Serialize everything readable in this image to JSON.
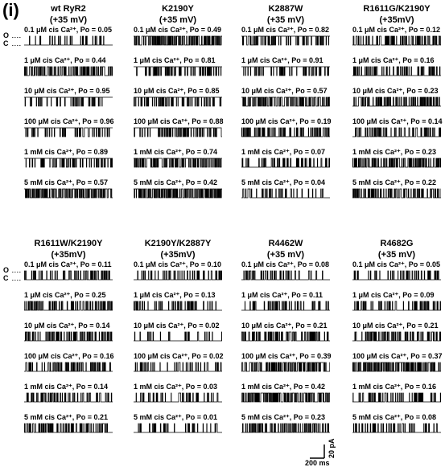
{
  "panel_label": "(i)",
  "state_labels": {
    "open": "O",
    "closed": "C"
  },
  "groups": [
    {
      "title_line1": "wt RyR2",
      "title_line2": "(+35 mV)",
      "conditions": [
        {
          "label": "0.1 μM cis Ca²⁺, Po = 0.05",
          "po": 0.05
        },
        {
          "label": "1 μM cis Ca²⁺, Po = 0.44",
          "po": 0.44
        },
        {
          "label": "10 μM cis Ca²⁺, Po = 0.95",
          "po": 0.95
        },
        {
          "label": "100 μM cis Ca²⁺, Po = 0.96",
          "po": 0.96
        },
        {
          "label": "1 mM cis Ca²⁺, Po = 0.89",
          "po": 0.89
        },
        {
          "label": "5 mM cis Ca²⁺, Po = 0.57",
          "po": 0.57
        }
      ]
    },
    {
      "title_line1": "K2190Y",
      "title_line2": "(+35 mV)",
      "conditions": [
        {
          "label": "0.1 μM cis Ca²⁺, Po = 0.49",
          "po": 0.49
        },
        {
          "label": "1 μM cis Ca²⁺, Po = 0.81",
          "po": 0.81
        },
        {
          "label": "10 μM cis Ca²⁺, Po = 0.85",
          "po": 0.85
        },
        {
          "label": "100 μM cis Ca²⁺, Po = 0.88",
          "po": 0.88
        },
        {
          "label": "1 mM cis Ca²⁺, Po = 0.74",
          "po": 0.74
        },
        {
          "label": "5 mM cis Ca²⁺, Po = 0.42",
          "po": 0.42
        }
      ]
    },
    {
      "title_line1": "K2887W",
      "title_line2": "(+35 mV)",
      "conditions": [
        {
          "label": "0.1 μM cis Ca²⁺, Po = 0.82",
          "po": 0.82
        },
        {
          "label": "1 μM cis Ca²⁺, Po = 0.91",
          "po": 0.91
        },
        {
          "label": "10 μM cis Ca²⁺, Po = 0.57",
          "po": 0.57
        },
        {
          "label": "100 μM cis Ca²⁺, Po = 0.19",
          "po": 0.19
        },
        {
          "label": "1 mM cis Ca²⁺, Po = 0.07",
          "po": 0.07
        },
        {
          "label": "5 mM cis Ca²⁺, Po = 0.04",
          "po": 0.04
        }
      ]
    },
    {
      "title_line1": "R1611G/K2190Y",
      "title_line2": "(+35mV)",
      "conditions": [
        {
          "label": "0.1 μM cis Ca²⁺, Po = 0.12",
          "po": 0.12
        },
        {
          "label": "1 μM cis Ca²⁺, Po = 0.16",
          "po": 0.16
        },
        {
          "label": "10 μM cis Ca²⁺, Po = 0.23",
          "po": 0.23
        },
        {
          "label": "100 μM cis Ca²⁺, Po = 0.14",
          "po": 0.14
        },
        {
          "label": "1 mM cis Ca²⁺, Po = 0.23",
          "po": 0.23
        },
        {
          "label": "5 mM cis Ca²⁺, Po = 0.22",
          "po": 0.22
        }
      ]
    },
    {
      "title_line1": "R1611W/K2190Y",
      "title_line2": "(+35mV)",
      "conditions": [
        {
          "label": "0.1 μM cis Ca²⁺, Po = 0.11",
          "po": 0.11
        },
        {
          "label": "1 μM cis Ca²⁺, Po = 0.25",
          "po": 0.25
        },
        {
          "label": "10 μM cis Ca²⁺, Po = 0.14",
          "po": 0.14
        },
        {
          "label": "100 μM cis Ca²⁺, Po = 0.16",
          "po": 0.16
        },
        {
          "label": "1 mM cis Ca²⁺, Po = 0.14",
          "po": 0.14
        },
        {
          "label": "5 mM cis Ca²⁺, Po = 0.21",
          "po": 0.21
        }
      ]
    },
    {
      "title_line1": "K2190Y/K2887Y",
      "title_line2": "(+35mV)",
      "conditions": [
        {
          "label": "0.1 μM cis Ca²⁺, Po = 0.10",
          "po": 0.1
        },
        {
          "label": "1 μM cis Ca²⁺, Po = 0.13",
          "po": 0.13
        },
        {
          "label": "10 μM cis Ca²⁺, Po = 0.02",
          "po": 0.02
        },
        {
          "label": "100 μM cis Ca²⁺, Po = 0.02",
          "po": 0.02
        },
        {
          "label": "1 mM cis Ca²⁺, Po = 0.03",
          "po": 0.03
        },
        {
          "label": "5 mM cis Ca²⁺, Po = 0.01",
          "po": 0.01
        }
      ]
    },
    {
      "title_line1": "R4462W",
      "title_line2": "(+35 mV)",
      "conditions": [
        {
          "label": "0.1 μM cis Ca²⁺, Po = 0.08",
          "po": 0.08
        },
        {
          "label": "1 μM cis Ca²⁺, Po = 0.11",
          "po": 0.11
        },
        {
          "label": "10 μM cis Ca²⁺, Po = 0.21",
          "po": 0.21
        },
        {
          "label": "100 μM cis Ca²⁺, Po = 0.39",
          "po": 0.39
        },
        {
          "label": "1 mM cis Ca²⁺, Po = 0.42",
          "po": 0.42
        },
        {
          "label": "5 mM cis Ca²⁺, Po = 0.23",
          "po": 0.23
        }
      ]
    },
    {
      "title_line1": "R4682G",
      "title_line2": "(+35 mV)",
      "conditions": [
        {
          "label": "0.1 μM cis Ca²⁺, Po = 0.05",
          "po": 0.05
        },
        {
          "label": "1 μM cis Ca²⁺, Po = 0.09",
          "po": 0.09
        },
        {
          "label": "10 μM cis Ca²⁺, Po = 0.21",
          "po": 0.21
        },
        {
          "label": "100 μM cis Ca²⁺, Po = 0.37",
          "po": 0.37
        },
        {
          "label": "1 mM cis Ca²⁺, Po = 0.16",
          "po": 0.16
        },
        {
          "label": "5 mM cis Ca²⁺, Po = 0.08",
          "po": 0.08
        }
      ]
    }
  ],
  "scale_bar": {
    "current_label": "20 pA",
    "time_label": "200 ms"
  }
}
